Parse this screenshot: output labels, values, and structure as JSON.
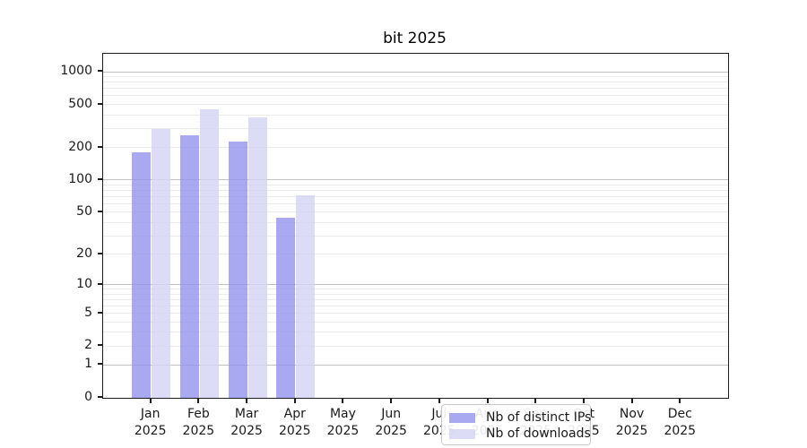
{
  "title": "bit 2025",
  "legend": {
    "items": [
      {
        "label": "Nb of distinct IPs",
        "color": "rgba(148,148,237,0.8)"
      },
      {
        "label": "Nb of downloads",
        "color": "rgba(211,211,244,0.8)"
      }
    ]
  },
  "chart_data": {
    "type": "bar",
    "title": "bit 2025",
    "categories": [
      "Jan 2025",
      "Feb 2025",
      "Mar 2025",
      "Apr 2025",
      "May 2025",
      "Jun 2025",
      "Jul 2025",
      "Aug 2025",
      "Sep 2025",
      "Oct 2025",
      "Nov 2025",
      "Dec 2025"
    ],
    "series": [
      {
        "name": "Nb of distinct IPs",
        "color": "rgba(148,148,237,0.8)",
        "values": [
          180,
          260,
          228,
          44,
          null,
          null,
          null,
          null,
          null,
          null,
          null,
          null
        ]
      },
      {
        "name": "Nb of downloads",
        "color": "rgba(211,211,244,0.8)",
        "values": [
          295,
          450,
          380,
          72,
          null,
          null,
          null,
          null,
          null,
          null,
          null,
          null
        ]
      }
    ],
    "xlabel": "",
    "ylabel": "",
    "yscale": "log1p",
    "ylim": [
      0,
      1465
    ],
    "yticks": [
      1000,
      500,
      200,
      100,
      50,
      20,
      10,
      5,
      2,
      1,
      0
    ],
    "grid": {
      "on": true,
      "major_lines": [
        1,
        10,
        100,
        1000
      ],
      "minor_lines": [
        2,
        3,
        4,
        5,
        6,
        7,
        8,
        9,
        20,
        30,
        40,
        50,
        60,
        70,
        80,
        90,
        200,
        300,
        400,
        500,
        600,
        700,
        800,
        900
      ]
    },
    "legend_position": "lower center"
  }
}
